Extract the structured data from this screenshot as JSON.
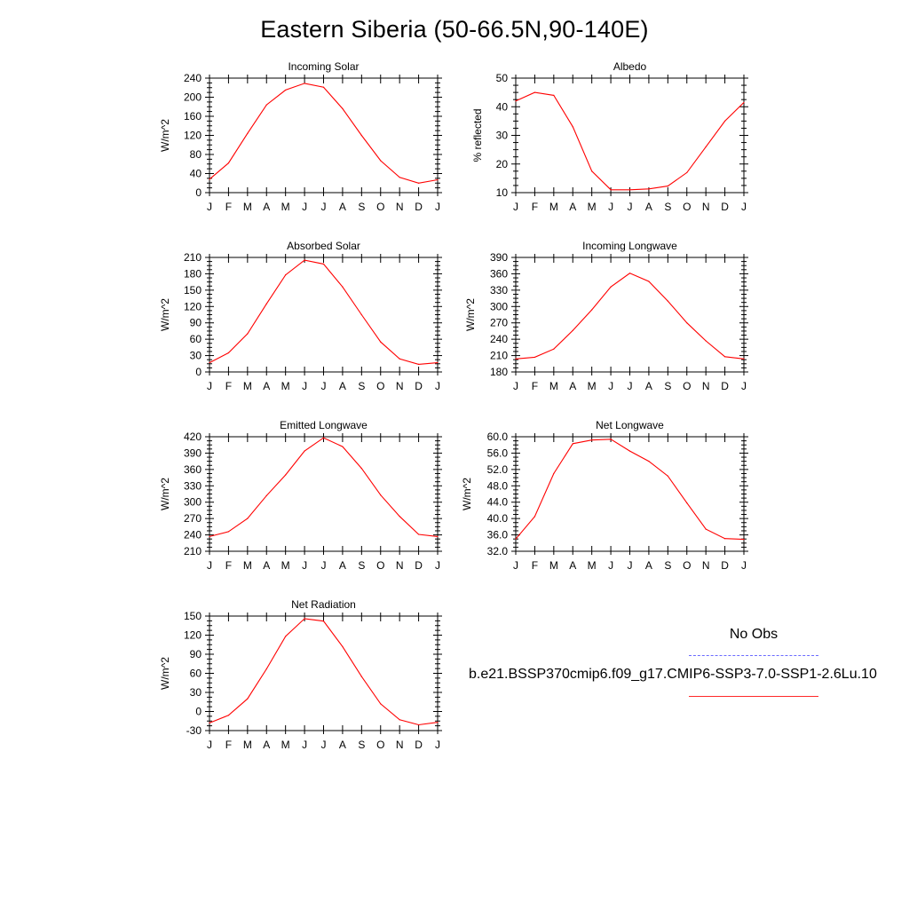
{
  "figure": {
    "title": "Eastern Siberia (50-66.5N,90-140E)"
  },
  "legend": {
    "obs_label": "No Obs",
    "obs_color": "#6b6bff",
    "model_label": "b.e21.BSSP370cmip6.f09_g17.CMIP6-SSP3-7.0-SSP1-2.6Lu.10",
    "model_color": "#ff2a2a"
  },
  "chart_data": [
    {
      "type": "line",
      "title": "Incoming Solar",
      "ylabel": "W/m^2",
      "xlabel": "",
      "x": [
        "J",
        "F",
        "M",
        "A",
        "M",
        "J",
        "J",
        "A",
        "S",
        "O",
        "N",
        "D",
        "J"
      ],
      "ylim": [
        0,
        240
      ],
      "yticks": [
        "0",
        "40",
        "80",
        "120",
        "160",
        "200",
        "240"
      ],
      "series": [
        {
          "color": "#ff0000",
          "values": [
            28,
            62,
            124,
            184,
            215,
            229,
            221,
            176,
            120,
            67,
            32,
            20,
            27
          ]
        }
      ]
    },
    {
      "type": "line",
      "title": "Albedo",
      "ylabel": "% reflected",
      "xlabel": "",
      "x": [
        "J",
        "F",
        "M",
        "A",
        "M",
        "J",
        "J",
        "A",
        "S",
        "O",
        "N",
        "D",
        "J"
      ],
      "ylim": [
        10,
        50
      ],
      "yticks": [
        "10",
        "20",
        "30",
        "40",
        "50"
      ],
      "series": [
        {
          "color": "#ff0000",
          "values": [
            42,
            45,
            44,
            33,
            17.5,
            11,
            11,
            11.3,
            12.3,
            17,
            26,
            35,
            41.5
          ]
        }
      ]
    },
    {
      "type": "line",
      "title": "Absorbed Solar",
      "ylabel": "W/m^2",
      "xlabel": "",
      "x": [
        "J",
        "F",
        "M",
        "A",
        "M",
        "J",
        "J",
        "A",
        "S",
        "O",
        "N",
        "D",
        "J"
      ],
      "ylim": [
        0,
        210
      ],
      "yticks": [
        "0",
        "30",
        "60",
        "90",
        "120",
        "150",
        "180",
        "210"
      ],
      "series": [
        {
          "color": "#ff0000",
          "values": [
            17,
            35,
            70,
            125,
            178,
            205,
            198,
            156,
            105,
            55,
            24,
            14,
            17
          ]
        }
      ]
    },
    {
      "type": "line",
      "title": "Incoming Longwave",
      "ylabel": "W/m^2",
      "xlabel": "",
      "x": [
        "J",
        "F",
        "M",
        "A",
        "M",
        "J",
        "J",
        "A",
        "S",
        "O",
        "N",
        "D",
        "J"
      ],
      "ylim": [
        180,
        390
      ],
      "yticks": [
        "180",
        "210",
        "240",
        "270",
        "300",
        "330",
        "360",
        "390"
      ],
      "series": [
        {
          "color": "#ff0000",
          "values": [
            204,
            207,
            222,
            256,
            294,
            336,
            361,
            346,
            310,
            270,
            237,
            208,
            204
          ]
        }
      ]
    },
    {
      "type": "line",
      "title": "Emitted Longwave",
      "ylabel": "W/m^2",
      "xlabel": "",
      "x": [
        "J",
        "F",
        "M",
        "A",
        "M",
        "J",
        "J",
        "A",
        "S",
        "O",
        "N",
        "D",
        "J"
      ],
      "ylim": [
        210,
        420
      ],
      "yticks": [
        "210",
        "240",
        "270",
        "300",
        "330",
        "360",
        "390",
        "420"
      ],
      "series": [
        {
          "color": "#ff0000",
          "values": [
            237,
            246,
            270,
            312,
            350,
            394,
            418,
            402,
            362,
            313,
            274,
            241,
            237
          ]
        }
      ]
    },
    {
      "type": "line",
      "title": "Net Longwave",
      "ylabel": "W/m^2",
      "xlabel": "",
      "x": [
        "J",
        "F",
        "M",
        "A",
        "M",
        "J",
        "J",
        "A",
        "S",
        "O",
        "N",
        "D",
        "J"
      ],
      "ylim": [
        32,
        60
      ],
      "yticks": [
        "32.0",
        "36.0",
        "40.0",
        "44.0",
        "48.0",
        "52.0",
        "56.0",
        "60.0"
      ],
      "series": [
        {
          "color": "#ff0000",
          "values": [
            35,
            40.5,
            51,
            58.3,
            59.2,
            59.4,
            56.5,
            54,
            50.4,
            43.8,
            37.4,
            35.1,
            34.9
          ]
        }
      ]
    },
    {
      "type": "line",
      "title": "Net Radiation",
      "ylabel": "W/m^2",
      "xlabel": "",
      "x": [
        "J",
        "F",
        "M",
        "A",
        "M",
        "J",
        "J",
        "A",
        "S",
        "O",
        "N",
        "D",
        "J"
      ],
      "ylim": [
        -30,
        150
      ],
      "yticks": [
        "-30",
        "0",
        "30",
        "60",
        "90",
        "120",
        "150"
      ],
      "series": [
        {
          "color": "#ff0000",
          "values": [
            -18,
            -6,
            20,
            67,
            118,
            146,
            142,
            102,
            55,
            12,
            -13,
            -21,
            -17
          ]
        }
      ]
    }
  ]
}
